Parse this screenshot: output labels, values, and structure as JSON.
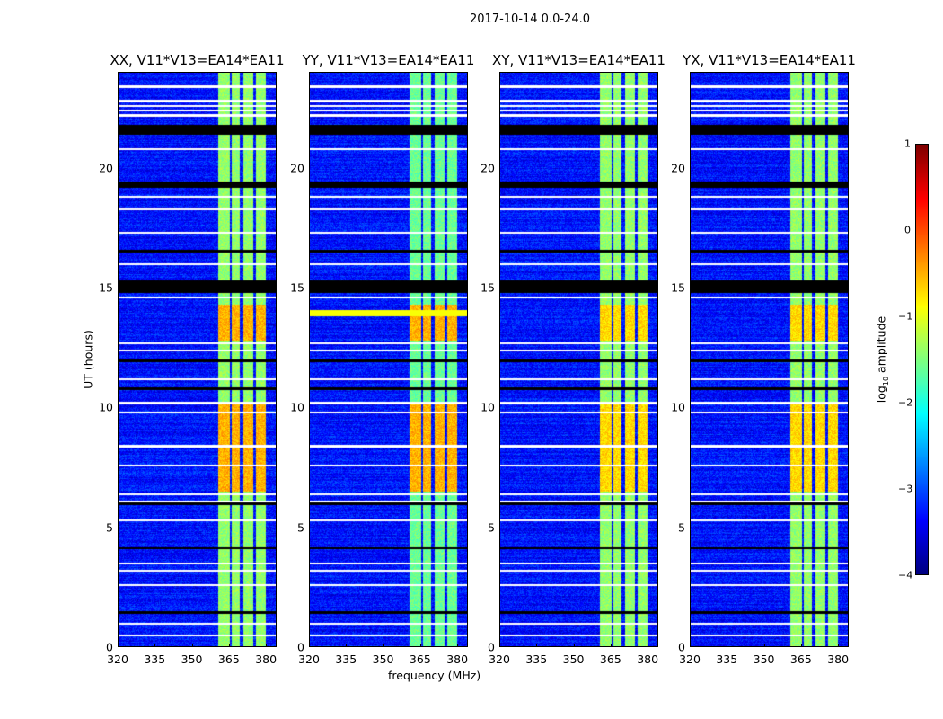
{
  "chart_data": {
    "type": "heatmap",
    "suptitle": "2017-10-14 0.0-24.0",
    "xlabel": "frequency (MHz)",
    "ylabel": "UT (hours)",
    "xlim": [
      320,
      384.3
    ],
    "ylim": [
      0,
      24
    ],
    "xticks": [
      "320",
      "335",
      "350",
      "365",
      "380"
    ],
    "xtick_values": [
      320,
      335,
      350,
      365,
      380
    ],
    "yticks": [
      "0",
      "5",
      "10",
      "15",
      "20"
    ],
    "ytick_values": [
      0,
      5,
      10,
      15,
      20
    ],
    "panels": [
      {
        "title": "XX, V11*V13=EA14*EA11"
      },
      {
        "title": "YY, V11*V13=EA14*EA11"
      },
      {
        "title": "XY, V11*V13=EA14*EA11"
      },
      {
        "title": "YX, V11*V13=EA14*EA11"
      }
    ],
    "background_level": -3.3,
    "subbands_mhz": [
      [
        360.4,
        365.1
      ],
      [
        365.8,
        369.4
      ],
      [
        370.5,
        374.5
      ],
      [
        375.6,
        379.9
      ]
    ],
    "subband_level": -1.4,
    "bright_intervals_hours": [
      [
        6.5,
        10.2
      ],
      [
        12.8,
        14.3
      ]
    ],
    "bright_level": -0.5,
    "flagged_white_hours": [
      0.5,
      1.0,
      2.6,
      3.2,
      3.5,
      5.3,
      6.1,
      6.4,
      7.6,
      8.4,
      9.8,
      10.2,
      11.2,
      12.4,
      12.7,
      14.6,
      16.0,
      17.3,
      18.3,
      18.8,
      20.8,
      22.2,
      22.4,
      22.6,
      22.8,
      23.4
    ],
    "black_hours": [
      [
        1.4,
        1.5
      ],
      [
        4.1,
        4.2
      ],
      [
        5.95,
        6.05
      ],
      [
        10.75,
        10.85
      ],
      [
        11.9,
        12.0
      ],
      [
        14.8,
        15.3
      ],
      [
        16.5,
        16.6
      ],
      [
        19.2,
        19.45
      ],
      [
        21.4,
        21.8
      ]
    ],
    "colorbar": {
      "label": "log10 amplitude",
      "label_main": "log",
      "label_sub": "10",
      "label_rest": " amplitude",
      "ticks": [
        "1",
        "0",
        "−1",
        "−2",
        "−3",
        "−4"
      ],
      "tick_values": [
        1,
        0,
        -1,
        -2,
        -3,
        -4
      ],
      "range": [
        -4,
        1
      ],
      "colormap": "jet"
    }
  }
}
